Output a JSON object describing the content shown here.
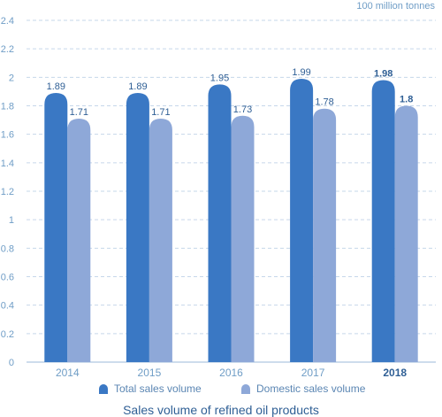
{
  "chart_data": {
    "type": "bar",
    "title": "Sales volume of refined oil products",
    "unit_label": "100 million tonnes",
    "categories": [
      "2014",
      "2015",
      "2016",
      "2017",
      "2018"
    ],
    "highlight_category": "2018",
    "series": [
      {
        "name": "Total sales volume",
        "values": [
          1.89,
          1.89,
          1.95,
          1.99,
          1.98
        ],
        "labels": [
          "1.89",
          "1.89",
          "1.95",
          "1.99",
          "1.98"
        ],
        "color": "#3a78c4"
      },
      {
        "name": "Domestic sales volume",
        "values": [
          1.71,
          1.71,
          1.73,
          1.78,
          1.8
        ],
        "labels": [
          "1.71",
          "1.71",
          "1.73",
          "1.78",
          "1.8"
        ],
        "color": "#8ea8d8"
      }
    ],
    "ylim": [
      0,
      2.4
    ],
    "yticks": [
      0,
      0.2,
      0.4,
      0.6,
      0.8,
      1,
      1.2,
      1.4,
      1.6,
      1.8,
      2,
      2.2,
      2.4
    ],
    "ytick_labels": [
      "0",
      "0.2",
      "0.4",
      "0.6",
      "0.8",
      "1",
      "1.2",
      "1.4",
      "1.6",
      "1.8",
      "2",
      "2.2",
      "2.4"
    ],
    "grid": "horizontal-dashed",
    "legend_position": "bottom",
    "colors": {
      "axis_text": "#6f9dc6",
      "grid": "#c6d7ea",
      "value_label": "#2f5f95",
      "caption": "#2f5f95"
    }
  }
}
